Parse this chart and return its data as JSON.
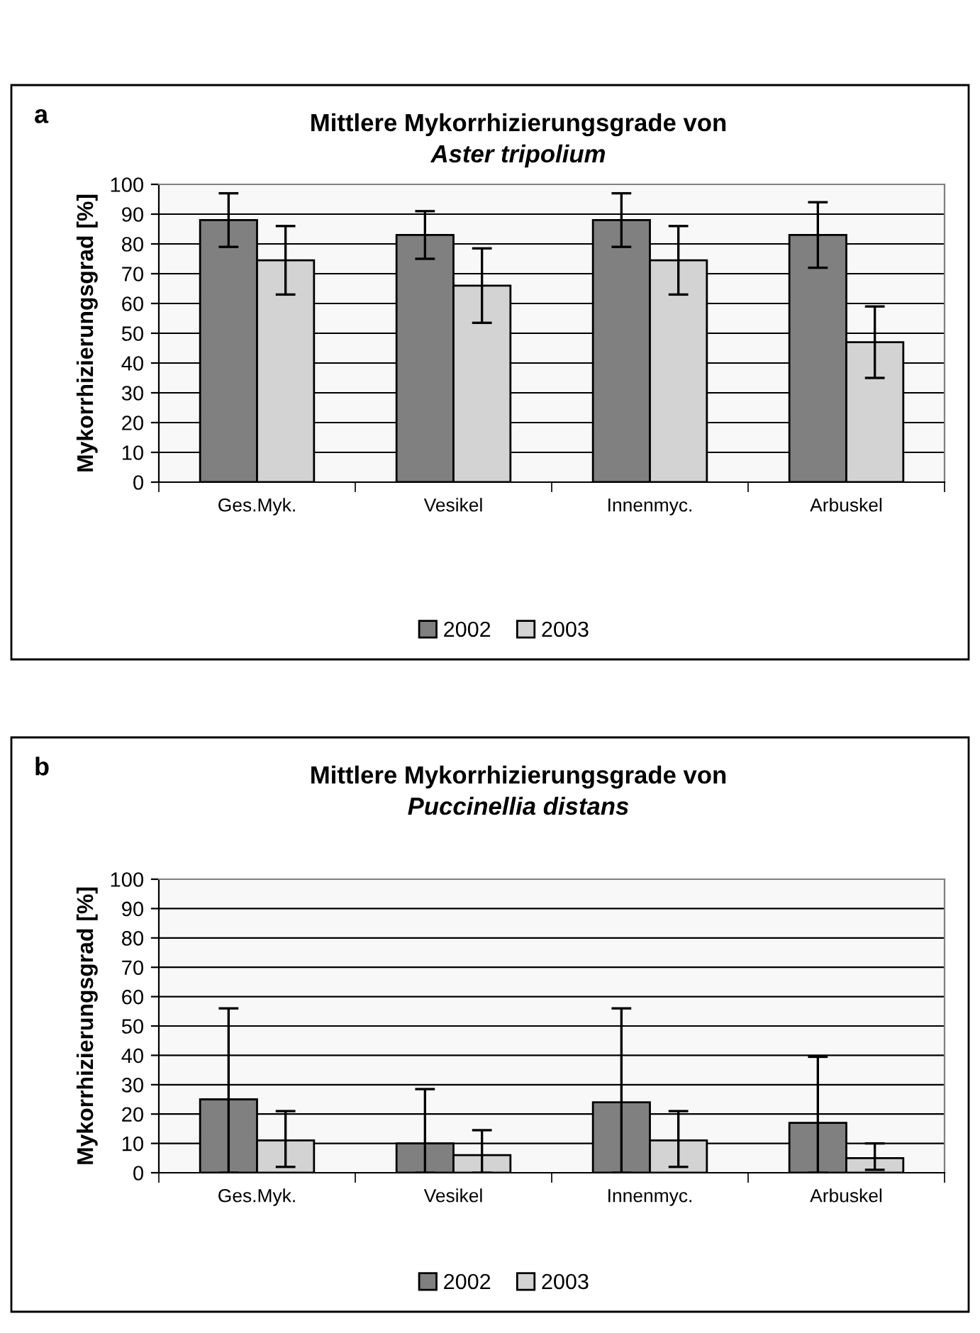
{
  "chart_data": [
    {
      "type": "bar",
      "title": "Mittlere Mykorrhizierungsgrade von",
      "subtitle": "Aster tripolium",
      "ylabel": "Mykorrhizierungsgrad [%]",
      "annotations": [
        "a"
      ],
      "categories": [
        "Ges.Myk.",
        "Vesikel",
        "Innenmyc.",
        "Arbuskel"
      ],
      "ylim": [
        0,
        100
      ],
      "yticks": [
        0,
        10,
        20,
        30,
        40,
        50,
        60,
        70,
        80,
        90,
        100
      ],
      "grid": "y",
      "legend": "bottom",
      "series": [
        {
          "name": "2002",
          "color": "#808080",
          "values": [
            88,
            83,
            88,
            83
          ],
          "errors": [
            9,
            8,
            9,
            11
          ]
        },
        {
          "name": "2003",
          "color": "#d3d3d3",
          "values": [
            74.5,
            66,
            74.5,
            47
          ],
          "errors": [
            11.5,
            12.5,
            11.5,
            12
          ]
        }
      ]
    },
    {
      "type": "bar",
      "title": "Mittlere Mykorrhizierungsgrade von",
      "subtitle": "Puccinellia distans",
      "ylabel": "Mykorrhizierungsgrad [%]",
      "annotations": [
        "b"
      ],
      "categories": [
        "Ges.Myk.",
        "Vesikel",
        "Innenmyc.",
        "Arbuskel"
      ],
      "ylim": [
        0,
        100
      ],
      "yticks": [
        0,
        10,
        20,
        30,
        40,
        50,
        60,
        70,
        80,
        90,
        100
      ],
      "grid": "y",
      "legend": "bottom",
      "series": [
        {
          "name": "2002",
          "color": "#808080",
          "values": [
            25,
            10,
            24,
            17
          ],
          "errors": [
            [
              0,
              56
            ],
            [
              0,
              28.5
            ],
            [
              0,
              56
            ],
            [
              0,
              39.5
            ]
          ]
        },
        {
          "name": "2003",
          "color": "#d3d3d3",
          "values": [
            11,
            6,
            11,
            5
          ],
          "errors": [
            [
              2,
              21
            ],
            [
              0,
              14.5
            ],
            [
              2,
              21
            ],
            [
              1,
              10
            ]
          ]
        }
      ]
    }
  ]
}
